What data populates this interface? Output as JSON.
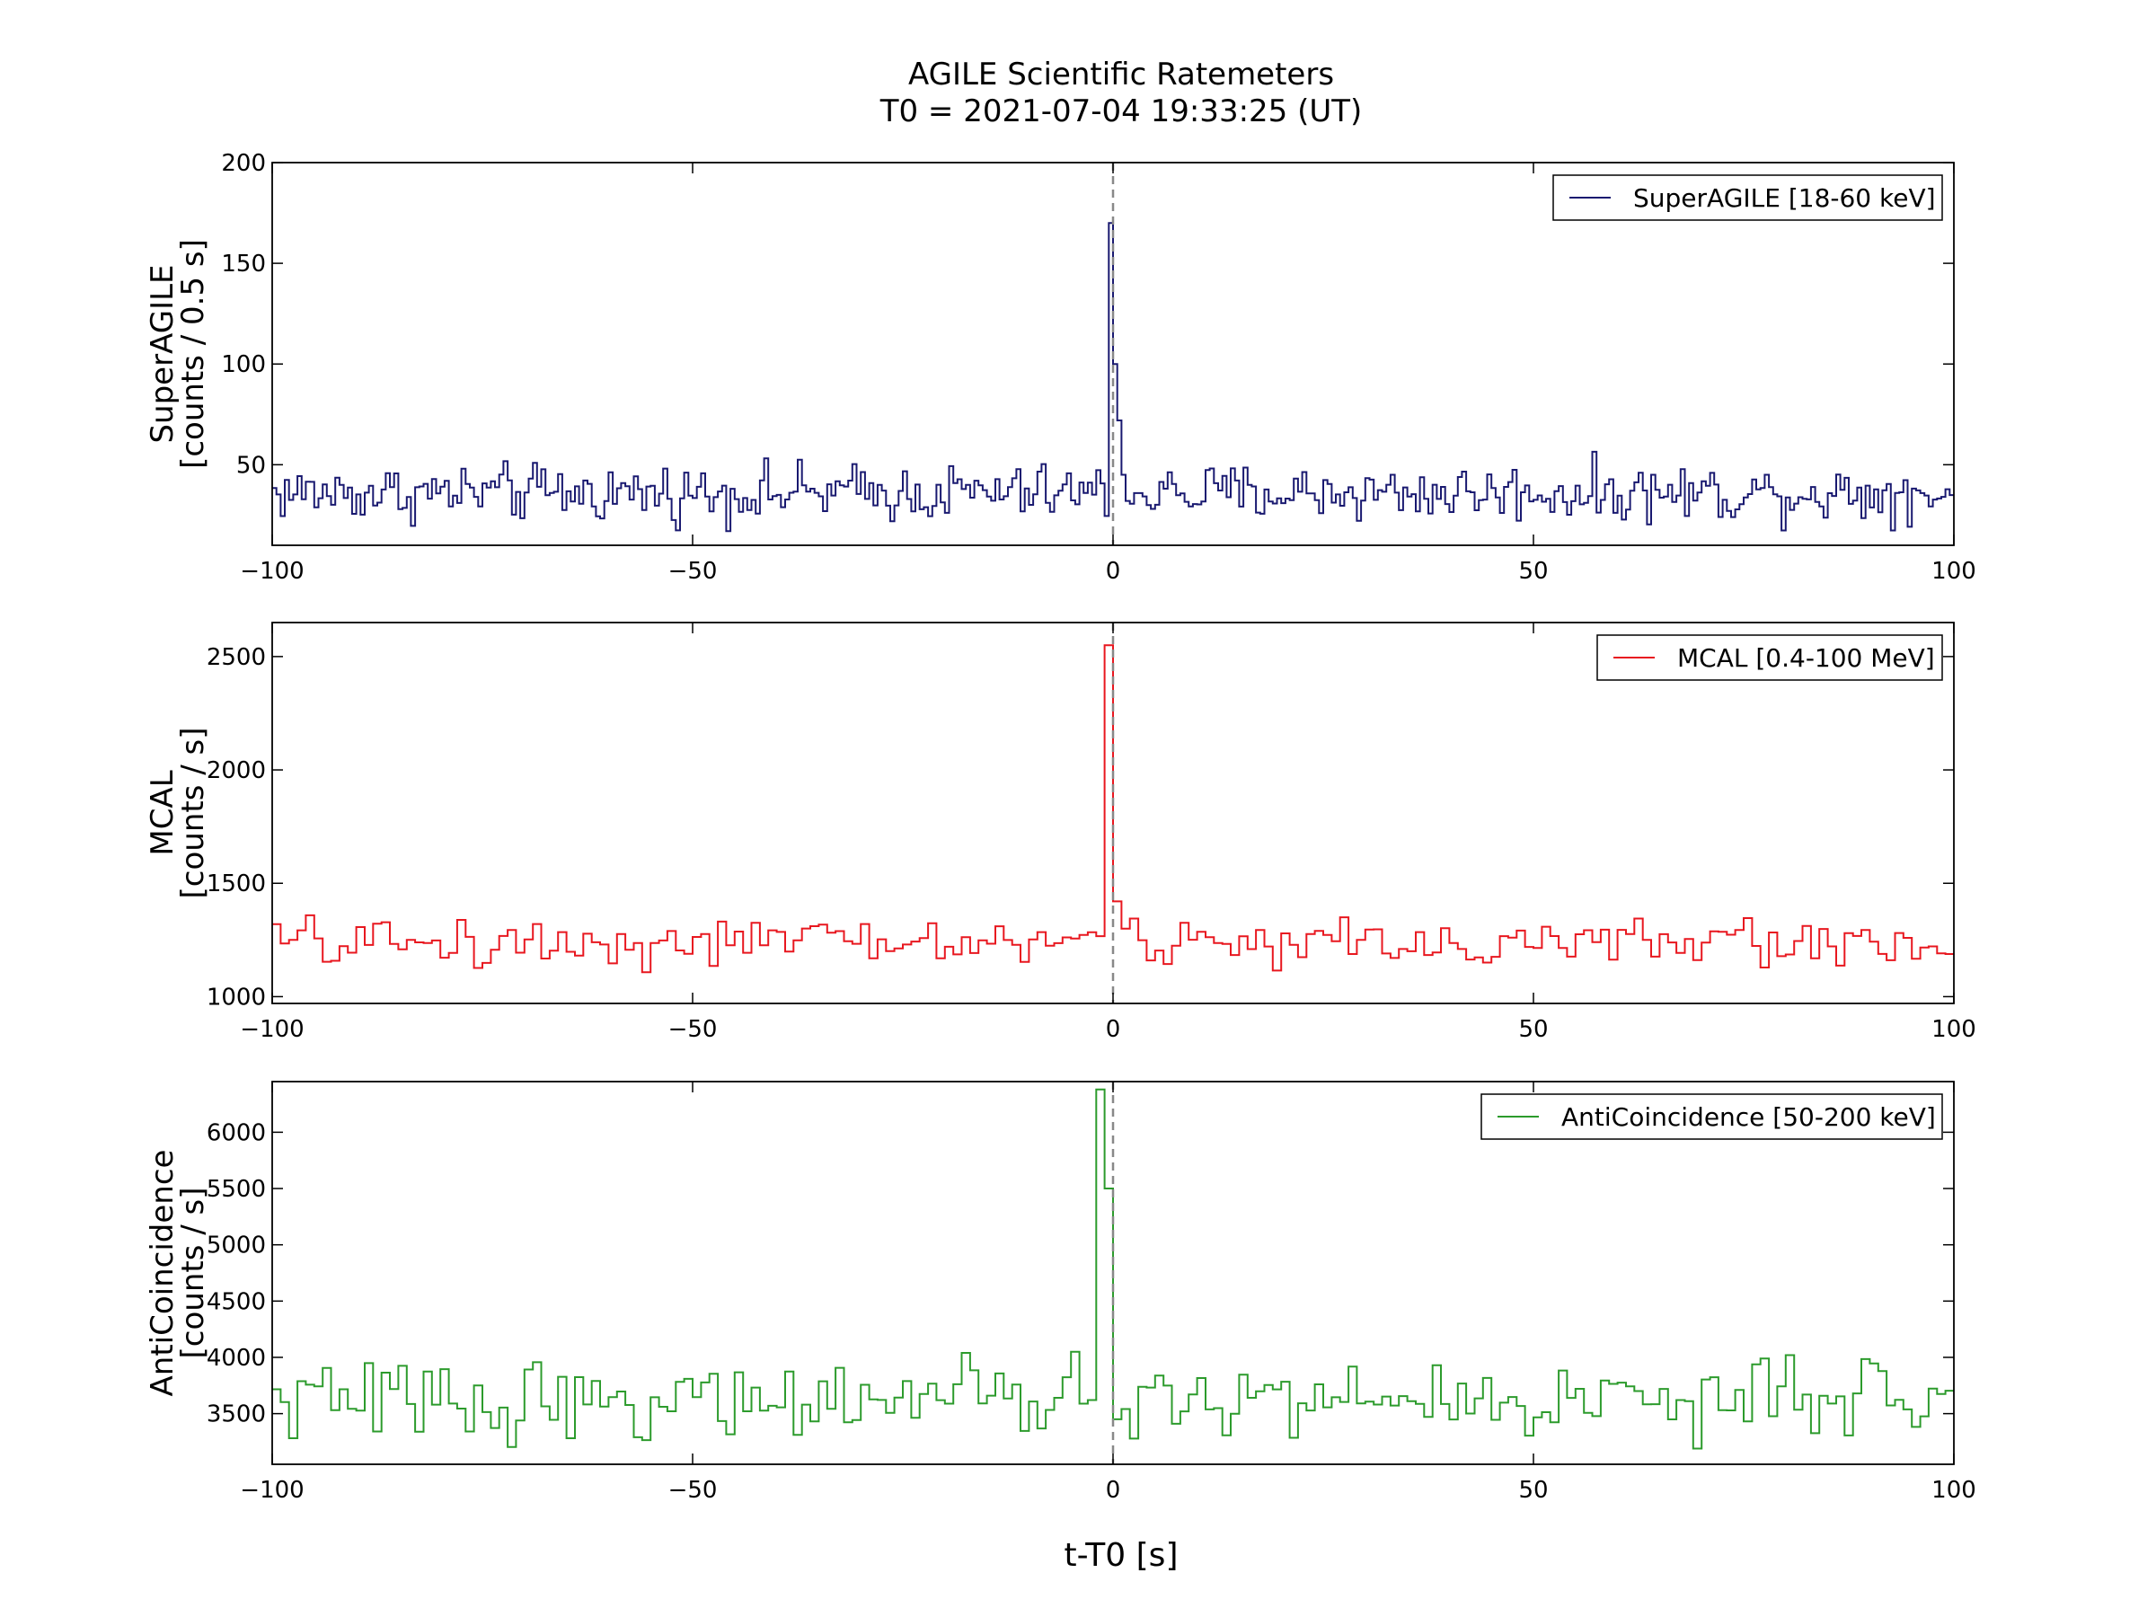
{
  "title_line1": "AGILE Scientific Ratemeters",
  "title_line2": "T0 = 2021-07-04 19:33:25 (UT)",
  "xlabel": "t-T0 [s]",
  "chart_data": [
    {
      "type": "line",
      "drawstyle": "steps",
      "series_name": "SuperAGILE [18-60 keV]",
      "color": "#191970",
      "ylabel_line1": "SuperAGILE",
      "ylabel_line2": "[counts / 0.5 s]",
      "xlim": [
        -100,
        100
      ],
      "ylim": [
        10,
        200
      ],
      "xticks": [
        -100,
        -50,
        0,
        50,
        100
      ],
      "xtick_labels": [
        "−100",
        "−50",
        "0",
        "50",
        "100"
      ],
      "yticks": [
        50,
        100,
        150,
        200
      ],
      "ytick_labels": [
        "50",
        "100",
        "150",
        "200"
      ],
      "marker_line_x": 0,
      "legend_position": "upper right",
      "bin_width": 0.5,
      "background_mean": 36,
      "background_spread": 7,
      "peak": [
        {
          "x": -0.5,
          "y": 170
        },
        {
          "x": 0.0,
          "y": 100
        },
        {
          "x": 0.5,
          "y": 72
        },
        {
          "x": 1.0,
          "y": 45
        }
      ]
    },
    {
      "type": "line",
      "drawstyle": "steps",
      "series_name": "MCAL [0.4-100 MeV]",
      "color": "#e8171f",
      "ylabel_line1": "MCAL",
      "ylabel_line2": "[counts / s]",
      "xlim": [
        -100,
        100
      ],
      "ylim": [
        970,
        2650
      ],
      "xticks": [
        -100,
        -50,
        0,
        50,
        100
      ],
      "xtick_labels": [
        "−100",
        "−50",
        "0",
        "50",
        "100"
      ],
      "yticks": [
        1000,
        1500,
        2000,
        2500
      ],
      "ytick_labels": [
        "1000",
        "1500",
        "2000",
        "2500"
      ],
      "marker_line_x": 0,
      "legend_position": "upper right",
      "bin_width": 1,
      "background_mean": 1240,
      "background_spread": 55,
      "peak": [
        {
          "x": -1,
          "y": 2550
        },
        {
          "x": 0,
          "y": 1420
        },
        {
          "x": 1,
          "y": 1300
        }
      ]
    },
    {
      "type": "line",
      "drawstyle": "steps",
      "series_name": "AntiCoincidence [50-200 keV]",
      "color": "#2c9b2c",
      "ylabel_line1": "AntiCoincidence",
      "ylabel_line2": "[counts / s]",
      "xlim": [
        -100,
        100
      ],
      "ylim": [
        3050,
        6450
      ],
      "xticks": [
        -100,
        -50,
        0,
        50,
        100
      ],
      "xtick_labels": [
        "−100",
        "−50",
        "0",
        "50",
        "100"
      ],
      "yticks": [
        3500,
        4000,
        4500,
        5000,
        5500,
        6000
      ],
      "ytick_labels": [
        "3500",
        "4000",
        "4500",
        "5000",
        "5500",
        "6000"
      ],
      "marker_line_x": 0,
      "legend_position": "upper right",
      "bin_width": 1,
      "background_mean": 3620,
      "background_spread": 170,
      "peak": [
        {
          "x": -2,
          "y": 6380
        },
        {
          "x": -1,
          "y": 5500
        },
        {
          "x": 0,
          "y": 3450
        }
      ]
    }
  ]
}
